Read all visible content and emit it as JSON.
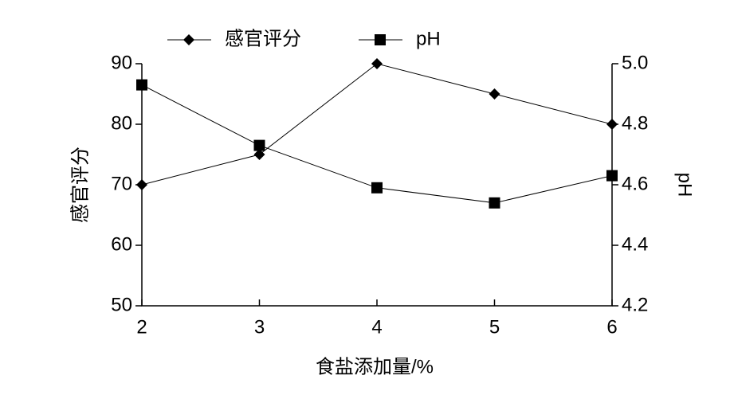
{
  "chart_data": {
    "type": "line",
    "xlabel": "食盐添加量/%",
    "ylabel": "感官评分",
    "y2label": "pH",
    "x": [
      2,
      3,
      4,
      5,
      6
    ],
    "xlim": [
      2,
      6
    ],
    "xticks": [
      2,
      3,
      4,
      5,
      6
    ],
    "ylim": [
      50,
      90
    ],
    "yticks": [
      50,
      60,
      70,
      80,
      90
    ],
    "y2lim": [
      4.2,
      5.0
    ],
    "y2ticks": [
      4.2,
      4.4,
      4.6,
      4.8,
      {
        "value": 5,
        "label": "5.0"
      }
    ],
    "series": [
      {
        "name": "感官评分",
        "color": "#000000",
        "marker": "diamond",
        "values": [
          70,
          75,
          90,
          85,
          80
        ]
      },
      {
        "name": "pH",
        "color": "#000000",
        "marker": "square",
        "axis": "y2",
        "values": [
          4.93,
          4.73,
          4.59,
          4.54,
          4.63
        ]
      }
    ]
  }
}
